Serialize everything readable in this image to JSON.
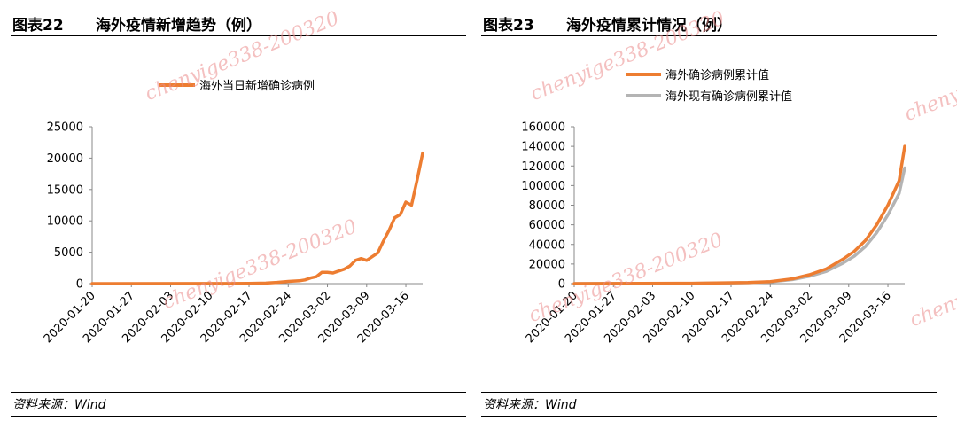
{
  "watermark": "chenyige338-200320",
  "watermark_short": "cheny",
  "colors": {
    "orange": "#ED7D31",
    "gray": "#B4B4B4"
  },
  "panels": [
    {
      "number": "图表22",
      "title": "海外疫情新增趋势（例）",
      "source": "资料来源：Wind",
      "chart_data": {
        "type": "line",
        "title": "",
        "xlabel": "",
        "ylabel": "",
        "legend_position": "top",
        "grid": false,
        "ylim": [
          0,
          25000
        ],
        "yticks": [
          "0",
          "5000",
          "10000",
          "15000",
          "20000",
          "25000"
        ],
        "xticks": [
          "2020-01-20",
          "2020-01-27",
          "2020-02-03",
          "2020-02-10",
          "2020-02-17",
          "2020-02-24",
          "2020-03-02",
          "2020-03-09",
          "2020-03-16"
        ],
        "x_start": "2020-01-20",
        "x_end": "2020-03-19",
        "series": [
          {
            "name": "海外当日新增确诊病例",
            "color": "#ED7D31",
            "points": [
              [
                "2020-01-20",
                0
              ],
              [
                "2020-02-10",
                10
              ],
              [
                "2020-02-17",
                30
              ],
              [
                "2020-02-20",
                80
              ],
              [
                "2020-02-22",
                200
              ],
              [
                "2020-02-24",
                350
              ],
              [
                "2020-02-26",
                450
              ],
              [
                "2020-02-27",
                600
              ],
              [
                "2020-02-28",
                900
              ],
              [
                "2020-02-29",
                1100
              ],
              [
                "2020-03-01",
                1800
              ],
              [
                "2020-03-02",
                1800
              ],
              [
                "2020-03-03",
                1700
              ],
              [
                "2020-03-04",
                2000
              ],
              [
                "2020-03-05",
                2300
              ],
              [
                "2020-03-06",
                2800
              ],
              [
                "2020-03-07",
                3700
              ],
              [
                "2020-03-08",
                4000
              ],
              [
                "2020-03-09",
                3700
              ],
              [
                "2020-03-10",
                4300
              ],
              [
                "2020-03-11",
                4900
              ],
              [
                "2020-03-12",
                6800
              ],
              [
                "2020-03-13",
                8500
              ],
              [
                "2020-03-14",
                10500
              ],
              [
                "2020-03-15",
                11000
              ],
              [
                "2020-03-16",
                13000
              ],
              [
                "2020-03-17",
                12500
              ],
              [
                "2020-03-18",
                16500
              ],
              [
                "2020-03-19",
                20800
              ]
            ]
          }
        ]
      }
    },
    {
      "number": "图表23",
      "title": "海外疫情累计情况（例）",
      "source": "资料来源：Wind",
      "chart_data": {
        "type": "line",
        "title": "",
        "xlabel": "",
        "ylabel": "",
        "legend_position": "top",
        "grid": false,
        "ylim": [
          0,
          160000
        ],
        "yticks": [
          "0",
          "20000",
          "40000",
          "60000",
          "80000",
          "100000",
          "120000",
          "140000",
          "160000"
        ],
        "xticks": [
          "2020-01-20",
          "2020-01-27",
          "2020-02-03",
          "2020-02-10",
          "2020-02-17",
          "2020-02-24",
          "2020-03-02",
          "2020-03-09",
          "2020-03-16"
        ],
        "x_start": "2020-01-20",
        "x_end": "2020-03-19",
        "series": [
          {
            "name": "海外确诊病例累计值",
            "color": "#ED7D31",
            "points": [
              [
                "2020-01-20",
                0
              ],
              [
                "2020-02-10",
                400
              ],
              [
                "2020-02-20",
                1100
              ],
              [
                "2020-02-24",
                2100
              ],
              [
                "2020-02-28",
                5000
              ],
              [
                "2020-03-02",
                9000
              ],
              [
                "2020-03-05",
                15000
              ],
              [
                "2020-03-08",
                25000
              ],
              [
                "2020-03-10",
                33000
              ],
              [
                "2020-03-12",
                44000
              ],
              [
                "2020-03-14",
                60000
              ],
              [
                "2020-03-16",
                80000
              ],
              [
                "2020-03-18",
                105000
              ],
              [
                "2020-03-19",
                140000
              ]
            ]
          },
          {
            "name": "海外现有确诊病例累计值",
            "color": "#B4B4B4",
            "points": [
              [
                "2020-01-20",
                0
              ],
              [
                "2020-02-10",
                300
              ],
              [
                "2020-02-20",
                900
              ],
              [
                "2020-02-24",
                1800
              ],
              [
                "2020-02-28",
                4200
              ],
              [
                "2020-03-02",
                7500
              ],
              [
                "2020-03-05",
                12500
              ],
              [
                "2020-03-08",
                21000
              ],
              [
                "2020-03-10",
                28000
              ],
              [
                "2020-03-12",
                38000
              ],
              [
                "2020-03-14",
                52000
              ],
              [
                "2020-03-16",
                70000
              ],
              [
                "2020-03-18",
                92000
              ],
              [
                "2020-03-19",
                118000
              ]
            ]
          }
        ]
      }
    }
  ]
}
